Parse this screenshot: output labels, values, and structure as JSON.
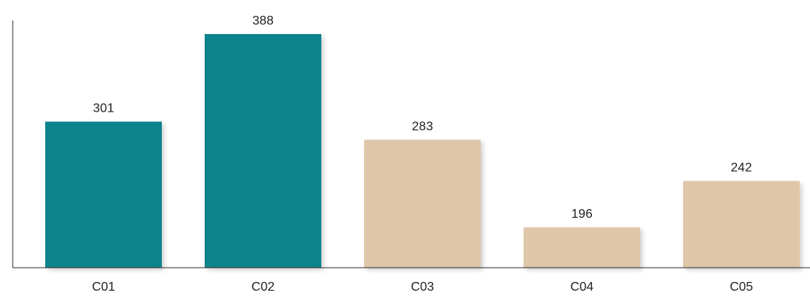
{
  "chart_data": {
    "type": "bar",
    "title": "",
    "xlabel": "",
    "ylabel": "",
    "categories": [
      "C01",
      "C02",
      "C03",
      "C04",
      "C05"
    ],
    "values": [
      301,
      388,
      283,
      196,
      242
    ],
    "colors": [
      "#08838d",
      "#08838d",
      "#dfc6a8",
      "#dfc6a8",
      "#dfc6a8"
    ],
    "baseline": 156,
    "ylim": [
      156,
      394
    ],
    "grid": false,
    "legend": "none",
    "data_labels": true
  }
}
